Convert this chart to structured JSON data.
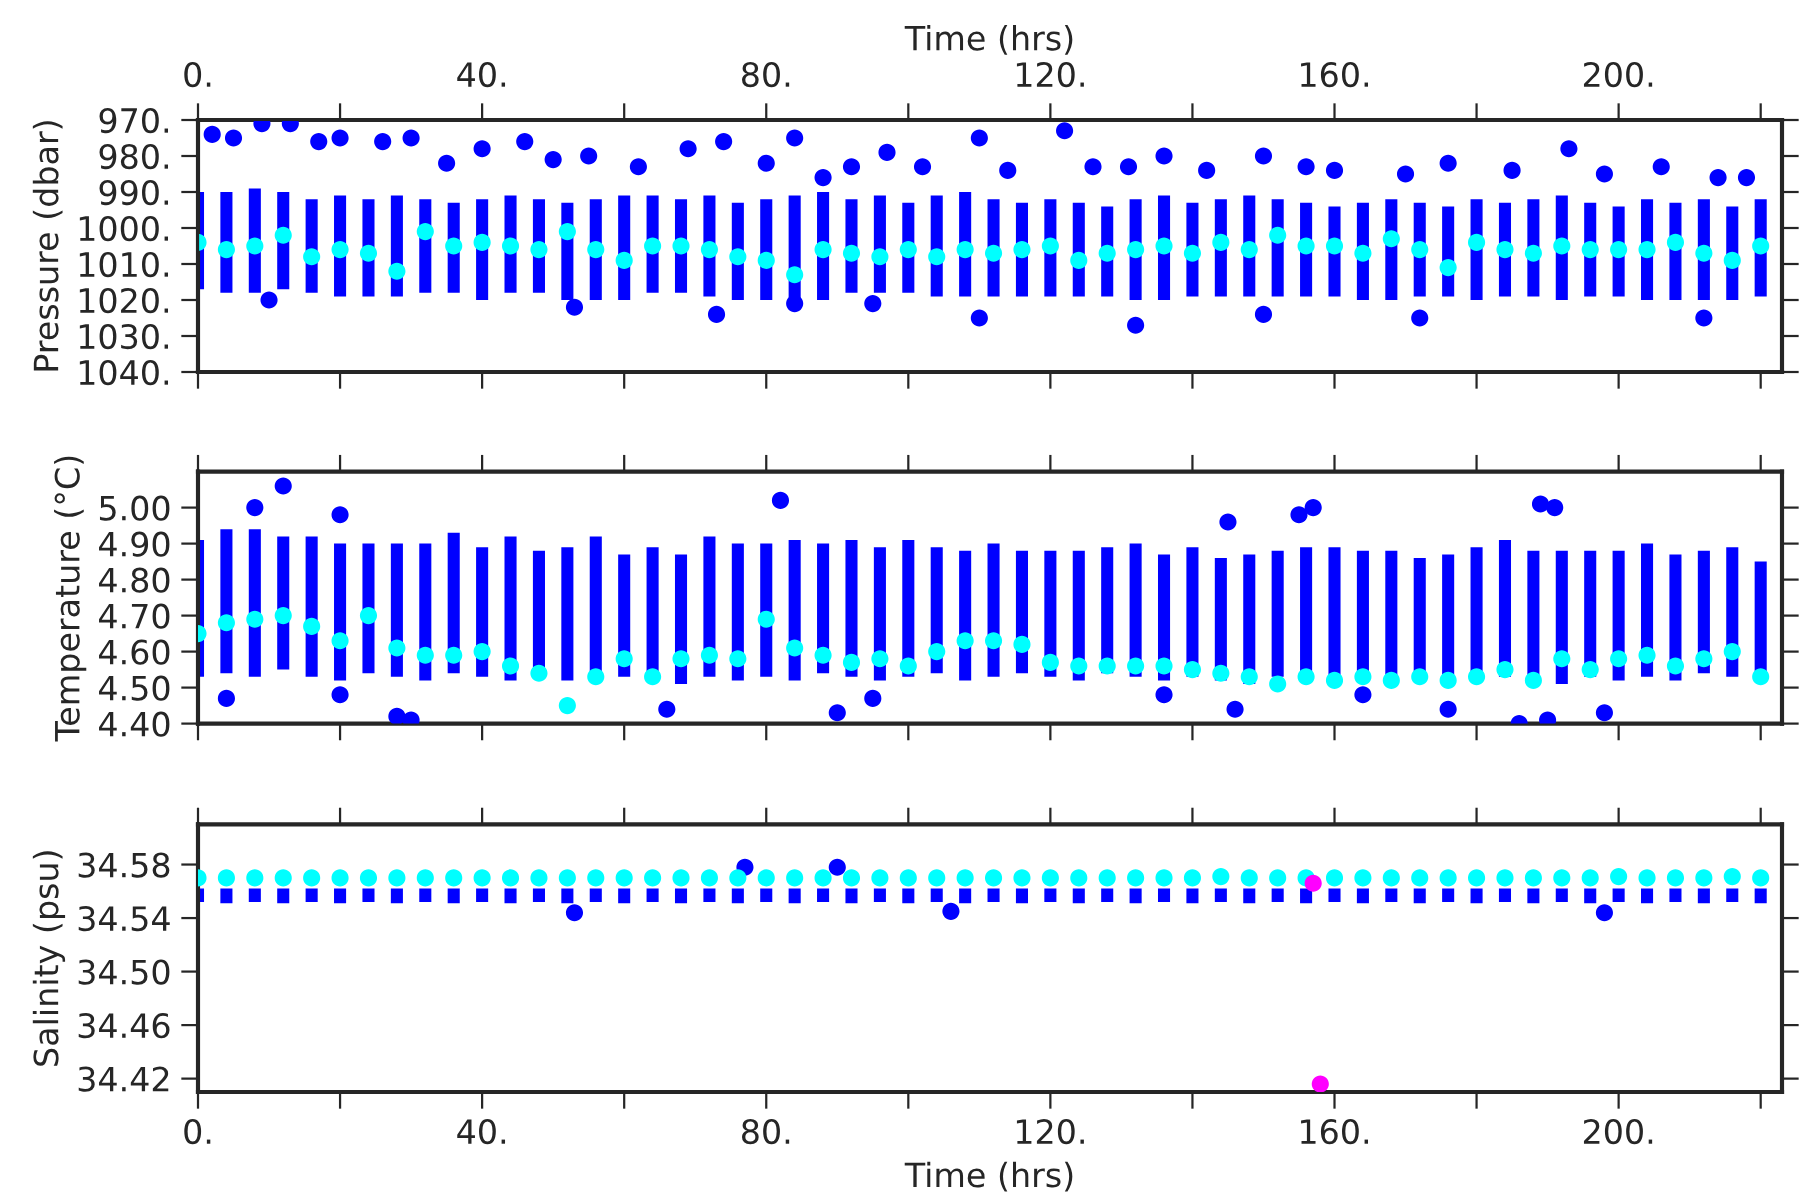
{
  "chart_data": [
    {
      "type": "scatter",
      "ylabel": "Pressure (dbar)",
      "x2label": "Time (hrs)",
      "marker": "circle",
      "grid": false,
      "legend": false,
      "tick_labels": "y",
      "xlim": [
        0,
        223
      ],
      "x2lim": [
        0,
        223
      ],
      "ylim": [
        1040,
        970
      ],
      "xticks": [
        {
          "value": 0,
          "label": null
        },
        {
          "value": 20,
          "label": null
        },
        {
          "value": 40,
          "label": null
        },
        {
          "value": 60,
          "label": null
        },
        {
          "value": 80,
          "label": null
        },
        {
          "value": 100,
          "label": null
        },
        {
          "value": 120,
          "label": null
        },
        {
          "value": 140,
          "label": null
        },
        {
          "value": 160,
          "label": null
        },
        {
          "value": 180,
          "label": null
        },
        {
          "value": 200,
          "label": null
        },
        {
          "value": 220,
          "label": null
        }
      ],
      "x2ticks": [
        {
          "value": 0,
          "label": "0."
        },
        {
          "value": 20,
          "label": null
        },
        {
          "value": 40,
          "label": "40."
        },
        {
          "value": 60,
          "label": null
        },
        {
          "value": 80,
          "label": "80."
        },
        {
          "value": 100,
          "label": null
        },
        {
          "value": 120,
          "label": "120."
        },
        {
          "value": 140,
          "label": null
        },
        {
          "value": 160,
          "label": "160."
        },
        {
          "value": 180,
          "label": null
        },
        {
          "value": 200,
          "label": "200."
        },
        {
          "value": 220,
          "label": null
        }
      ],
      "yticks": [
        {
          "value": 970,
          "label": "970."
        },
        {
          "value": 980,
          "label": "980."
        },
        {
          "value": 990,
          "label": "990."
        },
        {
          "value": 1000,
          "label": "1000."
        },
        {
          "value": 1010,
          "label": "1010."
        },
        {
          "value": 1020,
          "label": "1020."
        },
        {
          "value": 1030,
          "label": "1030."
        },
        {
          "value": 1040,
          "label": "1040."
        }
      ],
      "x": [
        0,
        4,
        8,
        12,
        16,
        20,
        24,
        28,
        32,
        36,
        40,
        44,
        48,
        52,
        56,
        60,
        64,
        68,
        72,
        76,
        80,
        84,
        88,
        92,
        96,
        100,
        104,
        108,
        112,
        116,
        120,
        124,
        128,
        132,
        136,
        140,
        144,
        148,
        152,
        156,
        160,
        164,
        168,
        172,
        176,
        180,
        184,
        188,
        192,
        196,
        200,
        204,
        208,
        212,
        216,
        220
      ],
      "series": [
        {
          "type": "bar",
          "color": "#0000ff",
          "base": [
            990,
            990,
            989,
            990,
            992,
            991,
            992,
            991,
            992,
            993,
            992,
            991,
            992,
            993,
            992,
            991,
            991,
            992,
            991,
            993,
            992,
            991,
            990,
            992,
            991,
            993,
            991,
            990,
            992,
            993,
            992,
            993,
            994,
            992,
            991,
            993,
            992,
            991,
            992,
            993,
            994,
            993,
            992,
            993,
            994,
            992,
            993,
            992,
            991,
            993,
            994,
            992,
            993,
            992,
            994,
            992
          ],
          "values": [
            27,
            28,
            29,
            27,
            26,
            28,
            27,
            28,
            26,
            25,
            28,
            27,
            26,
            27,
            28,
            29,
            27,
            26,
            28,
            27,
            28,
            29,
            30,
            26,
            27,
            25,
            28,
            29,
            27,
            26,
            27,
            26,
            25,
            28,
            29,
            26,
            27,
            28,
            27,
            26,
            25,
            27,
            28,
            26,
            25,
            28,
            26,
            27,
            29,
            26,
            25,
            28,
            27,
            28,
            26,
            27
          ]
        },
        {
          "color": "#0000ff",
          "x": [
            2,
            5,
            9,
            13,
            17,
            20,
            26,
            30,
            35,
            40,
            46,
            50,
            55,
            62,
            69,
            74,
            80,
            84,
            88,
            92,
            97,
            102,
            110,
            114,
            122,
            126,
            131,
            136,
            142,
            150,
            156,
            160,
            170,
            176,
            185,
            193,
            198,
            206,
            214,
            218,
            10,
            53,
            73,
            84,
            95,
            110,
            132,
            150,
            172,
            212
          ],
          "values": [
            974,
            975,
            971,
            971,
            976,
            975,
            976,
            975,
            982,
            978,
            976,
            981,
            980,
            983,
            978,
            976,
            982,
            975,
            986,
            983,
            979,
            983,
            975,
            984,
            973,
            983,
            983,
            980,
            984,
            980,
            983,
            984,
            985,
            982,
            984,
            978,
            985,
            983,
            986,
            986,
            1020,
            1022,
            1024,
            1021,
            1021,
            1025,
            1027,
            1024,
            1025,
            1025
          ]
        },
        {
          "color": "#00ffff",
          "values": [
            1004,
            1006,
            1005,
            1002,
            1008,
            1006,
            1007,
            1012,
            1001,
            1005,
            1004,
            1005,
            1006,
            1001,
            1006,
            1009,
            1005,
            1005,
            1006,
            1008,
            1009,
            1013,
            1006,
            1007,
            1008,
            1006,
            1008,
            1006,
            1007,
            1006,
            1005,
            1009,
            1007,
            1006,
            1005,
            1007,
            1004,
            1006,
            1002,
            1005,
            1005,
            1007,
            1003,
            1006,
            1011,
            1004,
            1006,
            1007,
            1005,
            1006,
            1006,
            1006,
            1004,
            1007,
            1009,
            1005
          ]
        }
      ]
    },
    {
      "type": "scatter",
      "ylabel": "Temperature (°C)",
      "marker": "circle",
      "grid": false,
      "legend": false,
      "tick_labels": "y",
      "xlim": [
        0,
        223
      ],
      "ylim": [
        4.4,
        5.1
      ],
      "xticks": [
        {
          "value": 0,
          "label": null
        },
        {
          "value": 20,
          "label": null
        },
        {
          "value": 40,
          "label": null
        },
        {
          "value": 60,
          "label": null
        },
        {
          "value": 80,
          "label": null
        },
        {
          "value": 100,
          "label": null
        },
        {
          "value": 120,
          "label": null
        },
        {
          "value": 140,
          "label": null
        },
        {
          "value": 160,
          "label": null
        },
        {
          "value": 180,
          "label": null
        },
        {
          "value": 200,
          "label": null
        },
        {
          "value": 220,
          "label": null
        }
      ],
      "yticks": [
        {
          "value": 4.4,
          "label": "4.40"
        },
        {
          "value": 4.5,
          "label": "4.50"
        },
        {
          "value": 4.6,
          "label": "4.60"
        },
        {
          "value": 4.7,
          "label": "4.70"
        },
        {
          "value": 4.8,
          "label": "4.80"
        },
        {
          "value": 4.9,
          "label": "4.90"
        },
        {
          "value": 5.0,
          "label": "5.00"
        }
      ],
      "x": [
        0,
        4,
        8,
        12,
        16,
        20,
        24,
        28,
        32,
        36,
        40,
        44,
        48,
        52,
        56,
        60,
        64,
        68,
        72,
        76,
        80,
        84,
        88,
        92,
        96,
        100,
        104,
        108,
        112,
        116,
        120,
        124,
        128,
        132,
        136,
        140,
        144,
        148,
        152,
        156,
        160,
        164,
        168,
        172,
        176,
        180,
        184,
        188,
        192,
        196,
        200,
        204,
        208,
        212,
        216,
        220
      ],
      "series": [
        {
          "type": "bar",
          "color": "#0000ff",
          "base": [
            4.53,
            4.54,
            4.53,
            4.55,
            4.53,
            4.52,
            4.54,
            4.53,
            4.52,
            4.54,
            4.53,
            4.52,
            4.53,
            4.52,
            4.54,
            4.53,
            4.52,
            4.51,
            4.53,
            4.52,
            4.53,
            4.52,
            4.54,
            4.53,
            4.52,
            4.53,
            4.54,
            4.52,
            4.53,
            4.54,
            4.53,
            4.52,
            4.54,
            4.53,
            4.52,
            4.53,
            4.52,
            4.51,
            4.53,
            4.52,
            4.51,
            4.52,
            4.53,
            4.52,
            4.51,
            4.52,
            4.53,
            4.52,
            4.51,
            4.53,
            4.52,
            4.53,
            4.52,
            4.54,
            4.53,
            4.52
          ],
          "values": [
            0.38,
            0.4,
            0.41,
            0.37,
            0.39,
            0.38,
            0.36,
            0.37,
            0.38,
            0.39,
            0.36,
            0.4,
            0.35,
            0.37,
            0.38,
            0.34,
            0.37,
            0.36,
            0.39,
            0.38,
            0.37,
            0.39,
            0.36,
            0.38,
            0.37,
            0.38,
            0.35,
            0.36,
            0.37,
            0.34,
            0.35,
            0.36,
            0.35,
            0.37,
            0.35,
            0.36,
            0.34,
            0.36,
            0.35,
            0.37,
            0.38,
            0.36,
            0.35,
            0.34,
            0.36,
            0.37,
            0.38,
            0.36,
            0.37,
            0.35,
            0.36,
            0.37,
            0.35,
            0.34,
            0.36,
            0.33
          ]
        },
        {
          "color": "#0000ff",
          "x": [
            12,
            82,
            20,
            8,
            4,
            20,
            28,
            30,
            66,
            90,
            95,
            136,
            146,
            164,
            176,
            186,
            190,
            198,
            155,
            157,
            189,
            191,
            145
          ],
          "values": [
            5.06,
            5.02,
            4.98,
            5.0,
            4.47,
            4.48,
            4.42,
            4.41,
            4.44,
            4.43,
            4.47,
            4.48,
            4.44,
            4.48,
            4.44,
            4.4,
            4.41,
            4.43,
            4.98,
            5.0,
            5.01,
            5.0,
            4.96
          ]
        },
        {
          "color": "#00ffff",
          "values": [
            4.65,
            4.68,
            4.69,
            4.7,
            4.67,
            4.63,
            4.7,
            4.61,
            4.59,
            4.59,
            4.6,
            4.56,
            4.54,
            4.45,
            4.53,
            4.58,
            4.53,
            4.58,
            4.59,
            4.58,
            4.69,
            4.61,
            4.59,
            4.57,
            4.58,
            4.56,
            4.6,
            4.63,
            4.63,
            4.62,
            4.57,
            4.56,
            4.56,
            4.56,
            4.56,
            4.55,
            4.54,
            4.53,
            4.51,
            4.53,
            4.52,
            4.53,
            4.52,
            4.53,
            4.52,
            4.53,
            4.55,
            4.52,
            4.58,
            4.55,
            4.58,
            4.59,
            4.56,
            4.58,
            4.6,
            4.53
          ]
        }
      ]
    },
    {
      "type": "scatter",
      "ylabel": "Salinity (psu)",
      "xlabel": "Time (hrs)",
      "marker": "circle",
      "grid": false,
      "legend": false,
      "xlim": [
        0,
        223
      ],
      "ylim": [
        34.41,
        34.61
      ],
      "xticks": [
        {
          "value": 0,
          "label": "0."
        },
        {
          "value": 20,
          "label": null
        },
        {
          "value": 40,
          "label": "40."
        },
        {
          "value": 60,
          "label": null
        },
        {
          "value": 80,
          "label": "80."
        },
        {
          "value": 100,
          "label": null
        },
        {
          "value": 120,
          "label": "120."
        },
        {
          "value": 140,
          "label": null
        },
        {
          "value": 160,
          "label": "160."
        },
        {
          "value": 180,
          "label": null
        },
        {
          "value": 200,
          "label": "200."
        },
        {
          "value": 220,
          "label": null
        }
      ],
      "yticks": [
        {
          "value": 34.42,
          "label": "34.42"
        },
        {
          "value": 34.46,
          "label": "34.46"
        },
        {
          "value": 34.5,
          "label": "34.50"
        },
        {
          "value": 34.54,
          "label": "34.54"
        },
        {
          "value": 34.58,
          "label": "34.58"
        }
      ],
      "x": [
        0,
        4,
        8,
        12,
        16,
        20,
        24,
        28,
        32,
        36,
        40,
        44,
        48,
        52,
        56,
        60,
        64,
        68,
        72,
        76,
        80,
        84,
        88,
        92,
        96,
        100,
        104,
        108,
        112,
        116,
        120,
        124,
        128,
        132,
        136,
        140,
        144,
        148,
        152,
        156,
        160,
        164,
        168,
        172,
        176,
        180,
        184,
        188,
        192,
        196,
        200,
        204,
        208,
        212,
        216,
        220
      ],
      "series": [
        {
          "type": "bar",
          "color": "#0000ff",
          "base": [
            34.552,
            34.551,
            34.552,
            34.551,
            34.552,
            34.551,
            34.552,
            34.551,
            34.552,
            34.551,
            34.552,
            34.551,
            34.552,
            34.551,
            34.552,
            34.551,
            34.552,
            34.551,
            34.552,
            34.551,
            34.552,
            34.551,
            34.552,
            34.551,
            34.552,
            34.551,
            34.552,
            34.551,
            34.552,
            34.551,
            34.552,
            34.551,
            34.552,
            34.551,
            34.552,
            34.551,
            34.552,
            34.551,
            34.552,
            34.551,
            34.552,
            34.551,
            34.552,
            34.551,
            34.552,
            34.551,
            34.552,
            34.551,
            34.552,
            34.551,
            34.552,
            34.551,
            34.552,
            34.551,
            34.552,
            34.551
          ],
          "values": [
            0.01,
            0.011,
            0.01,
            0.011,
            0.01,
            0.011,
            0.01,
            0.011,
            0.01,
            0.011,
            0.01,
            0.011,
            0.01,
            0.011,
            0.01,
            0.011,
            0.01,
            0.011,
            0.01,
            0.011,
            0.01,
            0.011,
            0.01,
            0.011,
            0.01,
            0.011,
            0.01,
            0.011,
            0.01,
            0.011,
            0.01,
            0.011,
            0.01,
            0.011,
            0.01,
            0.011,
            0.01,
            0.011,
            0.01,
            0.011,
            0.01,
            0.011,
            0.01,
            0.011,
            0.01,
            0.011,
            0.01,
            0.011,
            0.01,
            0.011,
            0.01,
            0.011,
            0.01,
            0.011,
            0.01,
            0.011
          ]
        },
        {
          "color": "#0000ff",
          "x": [
            77,
            90,
            53,
            198,
            106
          ],
          "values": [
            34.578,
            34.578,
            34.544,
            34.544,
            34.545
          ]
        },
        {
          "color": "#00ffff",
          "values": [
            34.57,
            34.57,
            34.57,
            34.57,
            34.57,
            34.57,
            34.57,
            34.57,
            34.57,
            34.57,
            34.57,
            34.57,
            34.57,
            34.57,
            34.57,
            34.57,
            34.57,
            34.57,
            34.57,
            34.57,
            34.57,
            34.57,
            34.57,
            34.57,
            34.57,
            34.57,
            34.57,
            34.57,
            34.57,
            34.57,
            34.57,
            34.57,
            34.57,
            34.57,
            34.57,
            34.57,
            34.571,
            34.57,
            34.57,
            34.57,
            34.57,
            34.57,
            34.57,
            34.57,
            34.57,
            34.57,
            34.57,
            34.57,
            34.57,
            34.57,
            34.571,
            34.57,
            34.57,
            34.57,
            34.571,
            34.57
          ]
        },
        {
          "color": "#ff00ff",
          "x": [
            157,
            158
          ],
          "values": [
            34.566,
            34.416
          ]
        }
      ]
    }
  ]
}
